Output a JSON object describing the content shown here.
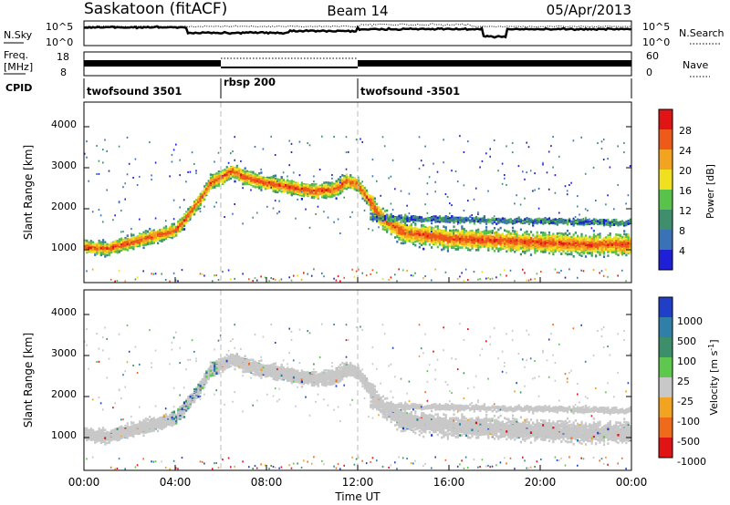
{
  "header": {
    "station": "Saskatoon (fitACF)",
    "beam": "Beam 14",
    "date": "05/Apr/2013"
  },
  "noise_panel": {
    "left_label": "N.Sky",
    "right_label": "N.Search",
    "left_ticks": [
      "10^5",
      "10^0"
    ],
    "right_ticks": [
      "10^5",
      "10^0"
    ]
  },
  "freq_panel": {
    "left_label_1": "Freq.",
    "left_label_2": "[MHz]",
    "right_label": "Nave",
    "left_ticks": [
      "18",
      "8"
    ],
    "right_ticks": [
      "60",
      "0"
    ]
  },
  "cpid_panel": {
    "label": "CPID",
    "segments": [
      {
        "label": "twofsound 3501",
        "start_hour": 0,
        "end_hour": 6
      },
      {
        "label": "rbsp 200",
        "start_hour": 6,
        "end_hour": 12
      },
      {
        "label": "twofsound -3501",
        "start_hour": 12,
        "end_hour": 24
      }
    ]
  },
  "power_panel": {
    "ylabel": "Slant Range [km]",
    "y_ticks": [
      "1000",
      "2000",
      "3000",
      "4000"
    ],
    "colorbar_label": "Power [dB]",
    "colorbar_ticks": [
      "4",
      "8",
      "12",
      "16",
      "20",
      "24",
      "28"
    ],
    "colors": [
      "#1f1fd6",
      "#3a72b8",
      "#3f8f6e",
      "#58c24a",
      "#f0e020",
      "#f2a31f",
      "#ee5a1a",
      "#e01414"
    ]
  },
  "velocity_panel": {
    "ylabel": "Slant Range [km]",
    "y_ticks": [
      "1000",
      "2000",
      "3000",
      "4000"
    ],
    "colorbar_label": "Velocity [m s",
    "colorbar_sup": "-1",
    "colorbar_end": "]",
    "colorbar_ticks": [
      "1000",
      "500",
      "100",
      "25",
      "-25",
      "-100",
      "-500",
      "-1000"
    ],
    "colors": [
      "#1f3fc8",
      "#2f7fa8",
      "#3c8f6a",
      "#5ec84e",
      "#c8c8c8",
      "#f2a31f",
      "#ef6a1a",
      "#e01414"
    ]
  },
  "x_axis": {
    "label": "Time UT",
    "ticks": [
      "00:00",
      "04:00",
      "08:00",
      "12:00",
      "16:00",
      "20:00",
      "00:00"
    ]
  },
  "chart_data": {
    "type": "heatmap",
    "title": "Saskatoon (fitACF)",
    "xlabel": "Time UT",
    "ylabel": "Slant Range [km]",
    "xlim_hours": [
      0,
      24
    ],
    "ylim_km": [
      200,
      4600
    ],
    "series": [
      {
        "name": "Power [dB]",
        "ridge_range_km": {
          "hours": [
            0,
            1,
            2,
            3,
            4,
            4.5,
            5,
            5.5,
            6,
            6.5,
            7,
            8,
            9,
            10,
            11,
            11.5,
            12,
            12.5,
            13,
            14,
            16,
            18,
            20,
            22,
            24
          ],
          "values": [
            1100,
            1050,
            1200,
            1350,
            1500,
            1850,
            2200,
            2650,
            2800,
            2950,
            2800,
            2650,
            2550,
            2450,
            2500,
            2700,
            2600,
            2200,
            1800,
            1450,
            1300,
            1250,
            1200,
            1150,
            1150
          ]
        }
      },
      {
        "name": "Velocity [m s-1]",
        "typical_range": [
          -25,
          25
        ]
      }
    ]
  }
}
